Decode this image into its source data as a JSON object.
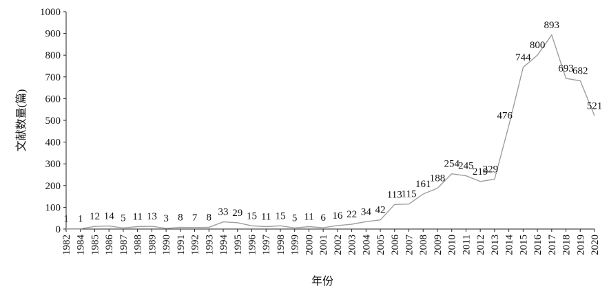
{
  "chart_data": {
    "type": "line",
    "title": "",
    "xlabel": "年份",
    "ylabel": "文献数量(篇)",
    "ylim": [
      0,
      1000
    ],
    "yticks": [
      "0",
      "100",
      "200",
      "300",
      "400",
      "500",
      "600",
      "700",
      "800",
      "900",
      "1000"
    ],
    "grid": false,
    "legend": "none",
    "line_color": "#9e9e9e",
    "categories": [
      "1982",
      "1984",
      "1985",
      "1986",
      "1987",
      "1988",
      "1989",
      "1990",
      "1991",
      "1992",
      "1993",
      "1994",
      "1995",
      "1996",
      "1997",
      "1998",
      "1999",
      "2000",
      "2001",
      "2002",
      "2003",
      "2004",
      "2005",
      "2006",
      "2007",
      "2008",
      "2009",
      "2010",
      "2011",
      "2012",
      "2013",
      "2014",
      "2015",
      "2016",
      "2017",
      "2018",
      "2019",
      "2020"
    ],
    "series": [
      {
        "values": [
          1,
          1,
          12,
          14,
          5,
          11,
          13,
          3,
          8,
          7,
          8,
          33,
          29,
          15,
          11,
          15,
          5,
          11,
          6,
          16,
          22,
          34,
          42,
          113,
          115,
          161,
          188,
          254,
          245,
          219,
          229,
          476,
          744,
          800,
          893,
          693,
          682,
          521
        ]
      }
    ]
  }
}
